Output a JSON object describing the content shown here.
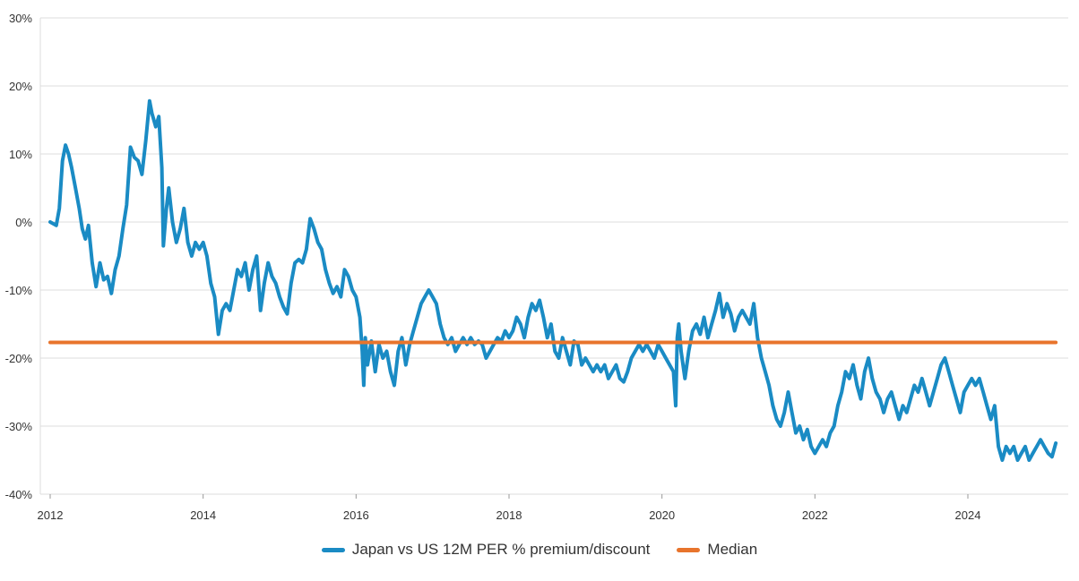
{
  "colors": {
    "series": "#1a8bc4",
    "median": "#e8742c",
    "grid": "#dcdcdc"
  },
  "chart_data": {
    "type": "line",
    "title": "",
    "xlabel": "",
    "ylabel": "",
    "xlim": [
      2012,
      2025.2
    ],
    "ylim": [
      -40,
      30
    ],
    "grid": "horizontal",
    "legend_position": "bottom-center",
    "x_ticks": [
      "2012",
      "2014",
      "2016",
      "2018",
      "2020",
      "2022",
      "2024"
    ],
    "y_ticks": [
      "30%",
      "20%",
      "10%",
      "0%",
      "-10%",
      "-20%",
      "-30%",
      "-40%"
    ],
    "series": [
      {
        "name": "Japan vs US 12M PER % premium/discount",
        "points": [
          [
            2012.0,
            0
          ],
          [
            2012.08,
            -0.5
          ],
          [
            2012.12,
            2
          ],
          [
            2012.16,
            9
          ],
          [
            2012.2,
            11.3
          ],
          [
            2012.24,
            10
          ],
          [
            2012.28,
            8
          ],
          [
            2012.33,
            5
          ],
          [
            2012.38,
            2
          ],
          [
            2012.42,
            -1
          ],
          [
            2012.46,
            -2.5
          ],
          [
            2012.5,
            -0.5
          ],
          [
            2012.55,
            -6
          ],
          [
            2012.6,
            -9.5
          ],
          [
            2012.65,
            -6
          ],
          [
            2012.7,
            -8.5
          ],
          [
            2012.75,
            -8
          ],
          [
            2012.8,
            -10.5
          ],
          [
            2012.85,
            -7
          ],
          [
            2012.9,
            -5
          ],
          [
            2012.95,
            -1
          ],
          [
            2013.0,
            2.5
          ],
          [
            2013.05,
            11
          ],
          [
            2013.1,
            9.5
          ],
          [
            2013.15,
            9
          ],
          [
            2013.2,
            7
          ],
          [
            2013.25,
            12
          ],
          [
            2013.3,
            17.8
          ],
          [
            2013.33,
            16
          ],
          [
            2013.38,
            14
          ],
          [
            2013.42,
            15.5
          ],
          [
            2013.46,
            8
          ],
          [
            2013.48,
            -3.5
          ],
          [
            2013.52,
            2
          ],
          [
            2013.55,
            5
          ],
          [
            2013.6,
            0
          ],
          [
            2013.65,
            -3
          ],
          [
            2013.7,
            -1
          ],
          [
            2013.75,
            2
          ],
          [
            2013.8,
            -3
          ],
          [
            2013.85,
            -5
          ],
          [
            2013.9,
            -3
          ],
          [
            2013.95,
            -4
          ],
          [
            2014.0,
            -3
          ],
          [
            2014.05,
            -5
          ],
          [
            2014.1,
            -9
          ],
          [
            2014.15,
            -11
          ],
          [
            2014.2,
            -16.5
          ],
          [
            2014.25,
            -13
          ],
          [
            2014.3,
            -12
          ],
          [
            2014.35,
            -13
          ],
          [
            2014.4,
            -10
          ],
          [
            2014.45,
            -7
          ],
          [
            2014.5,
            -8
          ],
          [
            2014.55,
            -6
          ],
          [
            2014.6,
            -10
          ],
          [
            2014.65,
            -7
          ],
          [
            2014.7,
            -5
          ],
          [
            2014.75,
            -13
          ],
          [
            2014.8,
            -9
          ],
          [
            2014.85,
            -6
          ],
          [
            2014.9,
            -8
          ],
          [
            2014.95,
            -9
          ],
          [
            2015.0,
            -11
          ],
          [
            2015.05,
            -12.5
          ],
          [
            2015.1,
            -13.5
          ],
          [
            2015.15,
            -9
          ],
          [
            2015.2,
            -6
          ],
          [
            2015.25,
            -5.5
          ],
          [
            2015.3,
            -6
          ],
          [
            2015.35,
            -4
          ],
          [
            2015.4,
            0.5
          ],
          [
            2015.45,
            -1
          ],
          [
            2015.5,
            -3
          ],
          [
            2015.55,
            -4
          ],
          [
            2015.6,
            -7
          ],
          [
            2015.65,
            -9
          ],
          [
            2015.7,
            -10.5
          ],
          [
            2015.75,
            -9.5
          ],
          [
            2015.8,
            -11
          ],
          [
            2015.85,
            -7
          ],
          [
            2015.9,
            -8
          ],
          [
            2015.95,
            -10
          ],
          [
            2016.0,
            -11
          ],
          [
            2016.05,
            -14
          ],
          [
            2016.08,
            -19
          ],
          [
            2016.1,
            -24
          ],
          [
            2016.12,
            -17
          ],
          [
            2016.15,
            -21
          ],
          [
            2016.2,
            -17.5
          ],
          [
            2016.25,
            -22
          ],
          [
            2016.3,
            -18
          ],
          [
            2016.35,
            -20
          ],
          [
            2016.4,
            -19
          ],
          [
            2016.45,
            -22
          ],
          [
            2016.5,
            -24
          ],
          [
            2016.55,
            -19
          ],
          [
            2016.6,
            -17
          ],
          [
            2016.65,
            -21
          ],
          [
            2016.7,
            -18
          ],
          [
            2016.75,
            -16
          ],
          [
            2016.8,
            -14
          ],
          [
            2016.85,
            -12
          ],
          [
            2016.9,
            -11
          ],
          [
            2016.95,
            -10
          ],
          [
            2017.0,
            -11
          ],
          [
            2017.05,
            -12
          ],
          [
            2017.1,
            -15
          ],
          [
            2017.15,
            -17
          ],
          [
            2017.2,
            -18
          ],
          [
            2017.25,
            -17
          ],
          [
            2017.3,
            -19
          ],
          [
            2017.35,
            -18
          ],
          [
            2017.4,
            -17
          ],
          [
            2017.45,
            -18
          ],
          [
            2017.5,
            -17
          ],
          [
            2017.55,
            -18
          ],
          [
            2017.6,
            -17.5
          ],
          [
            2017.65,
            -18
          ],
          [
            2017.7,
            -20
          ],
          [
            2017.75,
            -19
          ],
          [
            2017.8,
            -18
          ],
          [
            2017.85,
            -17
          ],
          [
            2017.9,
            -17.5
          ],
          [
            2017.95,
            -16
          ],
          [
            2018.0,
            -17
          ],
          [
            2018.05,
            -16
          ],
          [
            2018.1,
            -14
          ],
          [
            2018.15,
            -15
          ],
          [
            2018.2,
            -17
          ],
          [
            2018.25,
            -14
          ],
          [
            2018.3,
            -12
          ],
          [
            2018.35,
            -13
          ],
          [
            2018.4,
            -11.5
          ],
          [
            2018.45,
            -14
          ],
          [
            2018.5,
            -17
          ],
          [
            2018.55,
            -15
          ],
          [
            2018.6,
            -19
          ],
          [
            2018.65,
            -20
          ],
          [
            2018.7,
            -17
          ],
          [
            2018.75,
            -19
          ],
          [
            2018.8,
            -21
          ],
          [
            2018.85,
            -17.5
          ],
          [
            2018.9,
            -18
          ],
          [
            2018.95,
            -21
          ],
          [
            2019.0,
            -20
          ],
          [
            2019.05,
            -21
          ],
          [
            2019.1,
            -22
          ],
          [
            2019.15,
            -21
          ],
          [
            2019.2,
            -22
          ],
          [
            2019.25,
            -21
          ],
          [
            2019.3,
            -23
          ],
          [
            2019.35,
            -22
          ],
          [
            2019.4,
            -21
          ],
          [
            2019.45,
            -23
          ],
          [
            2019.5,
            -23.5
          ],
          [
            2019.55,
            -22
          ],
          [
            2019.6,
            -20
          ],
          [
            2019.65,
            -19
          ],
          [
            2019.7,
            -18
          ],
          [
            2019.75,
            -19
          ],
          [
            2019.8,
            -18
          ],
          [
            2019.85,
            -19
          ],
          [
            2019.9,
            -20
          ],
          [
            2019.95,
            -18
          ],
          [
            2020.0,
            -19
          ],
          [
            2020.05,
            -20
          ],
          [
            2020.1,
            -21
          ],
          [
            2020.15,
            -22
          ],
          [
            2020.18,
            -27
          ],
          [
            2020.2,
            -17
          ],
          [
            2020.22,
            -15
          ],
          [
            2020.25,
            -19
          ],
          [
            2020.3,
            -23
          ],
          [
            2020.35,
            -19
          ],
          [
            2020.4,
            -16
          ],
          [
            2020.45,
            -15
          ],
          [
            2020.5,
            -16.5
          ],
          [
            2020.55,
            -14
          ],
          [
            2020.6,
            -17
          ],
          [
            2020.65,
            -15
          ],
          [
            2020.7,
            -13
          ],
          [
            2020.75,
            -10.5
          ],
          [
            2020.8,
            -14
          ],
          [
            2020.85,
            -12
          ],
          [
            2020.9,
            -13.5
          ],
          [
            2020.95,
            -16
          ],
          [
            2021.0,
            -14
          ],
          [
            2021.05,
            -13
          ],
          [
            2021.1,
            -14
          ],
          [
            2021.15,
            -15
          ],
          [
            2021.2,
            -12
          ],
          [
            2021.25,
            -17
          ],
          [
            2021.3,
            -20
          ],
          [
            2021.35,
            -22
          ],
          [
            2021.4,
            -24
          ],
          [
            2021.45,
            -27
          ],
          [
            2021.5,
            -29
          ],
          [
            2021.55,
            -30
          ],
          [
            2021.6,
            -28
          ],
          [
            2021.65,
            -25
          ],
          [
            2021.7,
            -28
          ],
          [
            2021.75,
            -31
          ],
          [
            2021.8,
            -30
          ],
          [
            2021.85,
            -32
          ],
          [
            2021.9,
            -30.5
          ],
          [
            2021.95,
            -33
          ],
          [
            2022.0,
            -34
          ],
          [
            2022.05,
            -33
          ],
          [
            2022.1,
            -32
          ],
          [
            2022.15,
            -33
          ],
          [
            2022.2,
            -31
          ],
          [
            2022.25,
            -30
          ],
          [
            2022.3,
            -27
          ],
          [
            2022.35,
            -25
          ],
          [
            2022.4,
            -22
          ],
          [
            2022.45,
            -23
          ],
          [
            2022.5,
            -21
          ],
          [
            2022.55,
            -24
          ],
          [
            2022.6,
            -26
          ],
          [
            2022.65,
            -22
          ],
          [
            2022.7,
            -20
          ],
          [
            2022.75,
            -23
          ],
          [
            2022.8,
            -25
          ],
          [
            2022.85,
            -26
          ],
          [
            2022.9,
            -28
          ],
          [
            2022.95,
            -26
          ],
          [
            2023.0,
            -25
          ],
          [
            2023.05,
            -27
          ],
          [
            2023.1,
            -29
          ],
          [
            2023.15,
            -27
          ],
          [
            2023.2,
            -28
          ],
          [
            2023.25,
            -26
          ],
          [
            2023.3,
            -24
          ],
          [
            2023.35,
            -25
          ],
          [
            2023.4,
            -23
          ],
          [
            2023.45,
            -25
          ],
          [
            2023.5,
            -27
          ],
          [
            2023.55,
            -25
          ],
          [
            2023.6,
            -23
          ],
          [
            2023.65,
            -21
          ],
          [
            2023.7,
            -20
          ],
          [
            2023.75,
            -22
          ],
          [
            2023.8,
            -24
          ],
          [
            2023.85,
            -26
          ],
          [
            2023.9,
            -28
          ],
          [
            2023.95,
            -25
          ],
          [
            2024.0,
            -24
          ],
          [
            2024.05,
            -23
          ],
          [
            2024.1,
            -24
          ],
          [
            2024.15,
            -23
          ],
          [
            2024.2,
            -25
          ],
          [
            2024.25,
            -27
          ],
          [
            2024.3,
            -29
          ],
          [
            2024.35,
            -27
          ],
          [
            2024.4,
            -33
          ],
          [
            2024.45,
            -35
          ],
          [
            2024.5,
            -33
          ],
          [
            2024.55,
            -34
          ],
          [
            2024.6,
            -33
          ],
          [
            2024.65,
            -35
          ],
          [
            2024.7,
            -34
          ],
          [
            2024.75,
            -33
          ],
          [
            2024.8,
            -35
          ],
          [
            2024.85,
            -34
          ],
          [
            2024.9,
            -33
          ],
          [
            2024.95,
            -32
          ],
          [
            2025.0,
            -33
          ],
          [
            2025.05,
            -34
          ],
          [
            2025.1,
            -34.5
          ],
          [
            2025.15,
            -32.5
          ]
        ]
      },
      {
        "name": "Median",
        "points": [
          [
            2012.0,
            -17.7
          ],
          [
            2025.15,
            -17.7
          ]
        ]
      }
    ]
  }
}
